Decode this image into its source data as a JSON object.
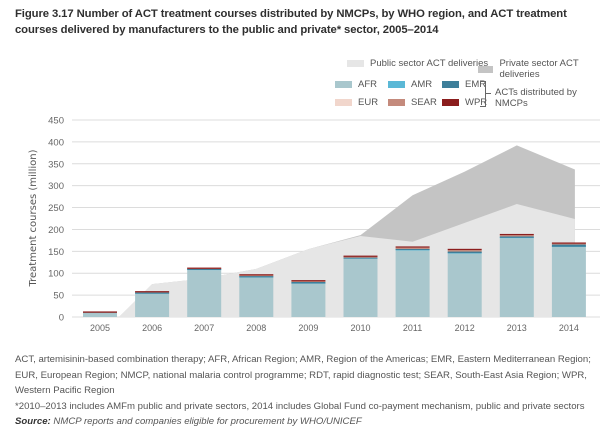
{
  "figure": {
    "title": "Figure 3.17 Number of ACT treatment courses distributed by NMCPs, by WHO region, and ACT treatment courses delivered by manufacturers to the public and private* sector, 2005–2014"
  },
  "legend": {
    "public_label": "Public sector ACT deliveries",
    "private_label": "Private sector ACT deliveries",
    "regions": [
      {
        "code": "AFR",
        "color": "#a9c7cd"
      },
      {
        "code": "AMR",
        "color": "#5bb8d6"
      },
      {
        "code": "EMR",
        "color": "#3e7f9a"
      },
      {
        "code": "EUR",
        "color": "#f1d6cc"
      },
      {
        "code": "SEAR",
        "color": "#c48a7c"
      },
      {
        "code": "WPR",
        "color": "#8b1d1d"
      }
    ],
    "group_label": "ACTs distributed by NMCPs"
  },
  "colors": {
    "public_area": "#e6e6e6",
    "private_area": "#c4c4c4",
    "gridline": "#dcdcdc",
    "axis_text": "#666666"
  },
  "chart_data": {
    "type": "bar",
    "title": "Number of ACT treatment courses distributed by NMCPs, by WHO region, and ACT treatment courses delivered by manufacturers to the public and private* sector, 2005–2014",
    "xlabel": "",
    "ylabel": "Treatment courses  (million)",
    "ylim": [
      0,
      450
    ],
    "yticks": [
      0,
      50,
      100,
      150,
      200,
      250,
      300,
      350,
      400,
      450
    ],
    "grid": true,
    "legend_position": "top-right",
    "categories": [
      "2005",
      "2006",
      "2007",
      "2008",
      "2009",
      "2010",
      "2011",
      "2012",
      "2013",
      "2014"
    ],
    "stacked_bar_series": [
      {
        "name": "AFR",
        "values": [
          9,
          53,
          107,
          90,
          76,
          133,
          152,
          145,
          180,
          160
        ]
      },
      {
        "name": "AMR",
        "values": [
          0,
          0.3,
          0.3,
          0.5,
          0.5,
          0.5,
          1,
          1,
          1,
          0.5
        ]
      },
      {
        "name": "EMR",
        "values": [
          0.5,
          2.5,
          2.5,
          3,
          3.5,
          2,
          2.5,
          3.5,
          3,
          5
        ]
      },
      {
        "name": "EUR",
        "values": [
          0,
          0,
          0,
          0,
          0,
          0,
          0,
          0,
          0,
          0
        ]
      },
      {
        "name": "SEAR",
        "values": [
          0.5,
          0.5,
          0.3,
          1.5,
          1.5,
          2,
          3,
          3.5,
          3,
          2
        ]
      },
      {
        "name": "WPR",
        "values": [
          0.5,
          0.3,
          0.3,
          0.5,
          0.5,
          1,
          2,
          1,
          1,
          0.5
        ]
      }
    ],
    "area_series": [
      {
        "name": "Public sector ACT deliveries",
        "values": [
          0,
          75,
          88,
          110,
          155,
          185,
          172,
          215,
          258,
          224
        ]
      },
      {
        "name": "Private sector ACT deliveries (cumulative total)",
        "values": [
          0,
          75,
          88,
          110,
          155,
          187,
          278,
          332,
          392,
          337
        ]
      }
    ]
  },
  "notes": {
    "abbreviations": "ACT, artemisinin-based combination therapy; AFR, African Region; AMR, Region of the Americas; EMR, Eastern Mediterranean Region; EUR, European Region; NMCP, national malaria control programme; RDT, rapid diagnostic test; SEAR, South-East Asia Region; WPR, Western Pacific Region",
    "footnote": "*2010–2013 includes AMFm public and private sectors, 2014 includes Global Fund co-payment mechanism, public and private sectors",
    "source_label": "Source:",
    "source_text": " NMCP reports and companies eligible for procurement by WHO/UNICEF"
  }
}
